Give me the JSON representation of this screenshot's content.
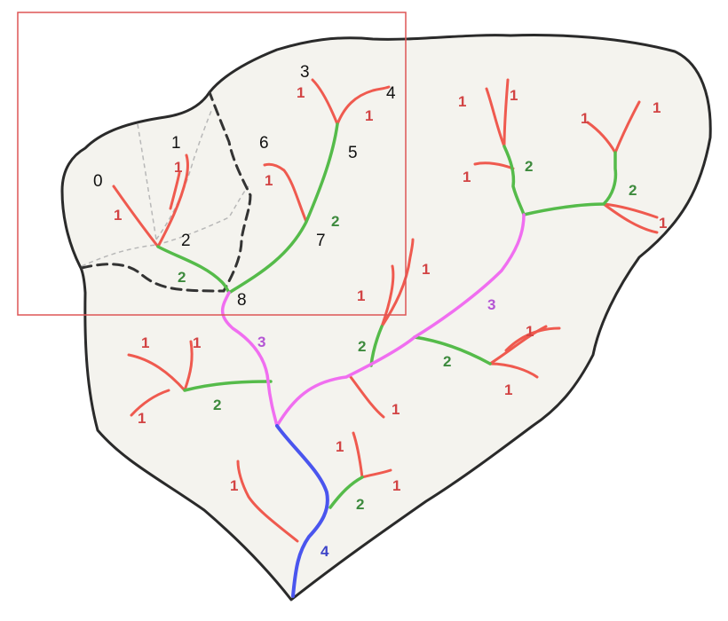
{
  "colors": {
    "order_1": "#ef5a4f",
    "order_2": "#55bb4a",
    "order_3": "#f06ef0",
    "order_4": "#4a55ee",
    "order_1_label": "#d24444",
    "order_2_label": "#3d8a3d",
    "order_3_label": "#b455d4",
    "order_4_label": "#3d44c8",
    "highlight_box": "#dd5555",
    "basin_fill": "#f4f3ee"
  },
  "node_labels": [
    "0",
    "1",
    "2",
    "3",
    "4",
    "5",
    "6",
    "7",
    "8"
  ],
  "stream_order_labels": {
    "order_1": "1",
    "order_2": "2",
    "order_3": "3",
    "order_4": "4"
  }
}
